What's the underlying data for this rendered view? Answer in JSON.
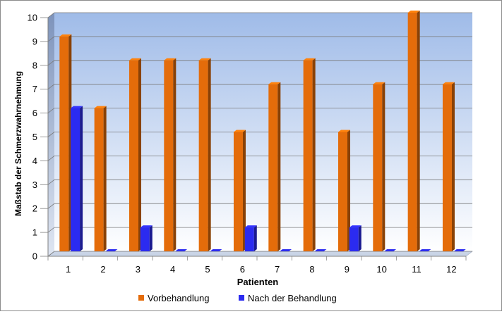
{
  "chart_data": {
    "type": "bar",
    "title": "",
    "xlabel": "Patienten",
    "ylabel": "Maßstab  der Schmerzwahrnehmung",
    "ylim": [
      0,
      10
    ],
    "yticks": [
      "0",
      "1",
      "2",
      "3",
      "4",
      "5",
      "6",
      "7",
      "8",
      "9",
      "10"
    ],
    "categories": [
      "1",
      "2",
      "3",
      "4",
      "5",
      "6",
      "7",
      "8",
      "9",
      "10",
      "11",
      "12"
    ],
    "series": [
      {
        "name": "Vorbehandlung",
        "values": [
          9,
          6,
          8,
          8,
          8,
          5,
          7,
          8,
          5,
          7,
          10,
          7
        ],
        "color": "#e46c0a"
      },
      {
        "name": "Nach der Behandlung",
        "values": [
          6,
          0,
          1,
          0,
          0,
          1,
          0,
          0,
          1,
          0,
          0,
          0
        ],
        "color": "#2b2bf0"
      }
    ],
    "grid": true,
    "legend_position": "bottom",
    "plot_background": "gradient #a7c0e8 to #ffffff"
  }
}
